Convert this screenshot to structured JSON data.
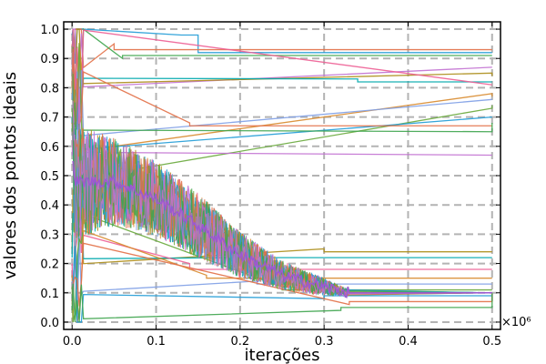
{
  "chart_data": {
    "type": "line",
    "xlabel": "iterações",
    "ylabel": "valores dos pontos ideais",
    "x_exponent_label": "×10⁶",
    "xlim": [
      -0.01,
      0.51
    ],
    "ylim": [
      -0.025,
      1.025
    ],
    "x_ticks": [
      0.0,
      0.1,
      0.2,
      0.3,
      0.4,
      0.5
    ],
    "x_tick_labels": [
      "0.0",
      "0.1",
      "0.2",
      "0.3",
      "0.4",
      "0.5"
    ],
    "y_ticks": [
      0.0,
      0.1,
      0.2,
      0.3,
      0.4,
      0.5,
      0.6,
      0.7,
      0.8,
      0.9,
      1.0
    ],
    "y_tick_labels": [
      "0.0",
      "0.1",
      "0.2",
      "0.3",
      "0.4",
      "0.5",
      "0.6",
      "0.7",
      "0.8",
      "0.9",
      "1.0"
    ],
    "grid": "dashed",
    "legend": "none",
    "palette": [
      "#1f9bd6",
      "#e26f46",
      "#3da44d",
      "#c271d2",
      "#ac8d18",
      "#00a9ad",
      "#ed5e93",
      "#d88a2c",
      "#7e9ee6",
      "#68a83b"
    ],
    "noisy_band": {
      "x": [
        0.0,
        0.05,
        0.1,
        0.15,
        0.2,
        0.25,
        0.3,
        0.33
      ],
      "center": [
        0.48,
        0.48,
        0.42,
        0.33,
        0.23,
        0.16,
        0.12,
        0.1
      ],
      "spread": [
        0.2,
        0.15,
        0.13,
        0.11,
        0.08,
        0.05,
        0.03,
        0.01
      ]
    },
    "converged_value": 0.1,
    "series": [
      {
        "values": [
          [
            0.0,
            0.98
          ],
          [
            0.13,
            0.98
          ],
          [
            0.15,
            0.92
          ],
          [
            0.5,
            0.92
          ]
        ]
      },
      {
        "values": [
          [
            0.0,
            0.95
          ],
          [
            0.05,
            0.93
          ],
          [
            0.5,
            0.93
          ]
        ]
      },
      {
        "values": [
          [
            0.0,
            0.9
          ],
          [
            0.06,
            0.91
          ],
          [
            0.5,
            0.91
          ]
        ]
      },
      {
        "values": [
          [
            0.0,
            0.87
          ],
          [
            0.5,
            0.87
          ]
        ]
      },
      {
        "values": [
          [
            0.0,
            0.85
          ],
          [
            0.5,
            0.84
          ]
        ]
      },
      {
        "values": [
          [
            0.0,
            0.83
          ],
          [
            0.33,
            0.83
          ],
          [
            0.34,
            0.82
          ],
          [
            0.5,
            0.82
          ]
        ]
      },
      {
        "values": [
          [
            0.0,
            0.81
          ],
          [
            0.5,
            0.81
          ]
        ]
      },
      {
        "values": [
          [
            0.0,
            0.78
          ],
          [
            0.5,
            0.77
          ]
        ]
      },
      {
        "values": [
          [
            0.0,
            0.76
          ],
          [
            0.5,
            0.76
          ]
        ]
      },
      {
        "values": [
          [
            0.0,
            0.73
          ],
          [
            0.5,
            0.74
          ]
        ]
      },
      {
        "values": [
          [
            0.0,
            0.7
          ],
          [
            0.5,
            0.7
          ]
        ]
      },
      {
        "values": [
          [
            0.0,
            0.68
          ],
          [
            0.14,
            0.67
          ],
          [
            0.5,
            0.67
          ]
        ]
      },
      {
        "values": [
          [
            0.0,
            0.65
          ],
          [
            0.5,
            0.68
          ]
        ]
      },
      {
        "values": [
          [
            0.0,
            0.57
          ],
          [
            0.5,
            0.57
          ]
        ]
      },
      {
        "values": [
          [
            0.0,
            0.25
          ],
          [
            0.3,
            0.24
          ],
          [
            0.5,
            0.24
          ]
        ]
      },
      {
        "values": [
          [
            0.0,
            0.22
          ],
          [
            0.2,
            0.22
          ],
          [
            0.5,
            0.22
          ]
        ]
      },
      {
        "values": [
          [
            0.0,
            0.2
          ],
          [
            0.14,
            0.18
          ],
          [
            0.5,
            0.18
          ]
        ]
      },
      {
        "values": [
          [
            0.0,
            0.16
          ],
          [
            0.16,
            0.15
          ],
          [
            0.5,
            0.15
          ]
        ]
      },
      {
        "values": [
          [
            0.0,
            0.14
          ],
          [
            0.22,
            0.13
          ],
          [
            0.5,
            0.13
          ]
        ]
      },
      {
        "values": [
          [
            0.0,
            0.12
          ],
          [
            0.25,
            0.11
          ],
          [
            0.5,
            0.11
          ]
        ]
      },
      {
        "values": [
          [
            0.0,
            0.08
          ],
          [
            0.3,
            0.09
          ],
          [
            0.5,
            0.1
          ]
        ]
      },
      {
        "values": [
          [
            0.0,
            0.06
          ],
          [
            0.33,
            0.07
          ],
          [
            0.5,
            0.1
          ]
        ]
      },
      {
        "values": [
          [
            0.0,
            0.04
          ],
          [
            0.32,
            0.05
          ],
          [
            0.5,
            0.1
          ]
        ]
      }
    ]
  }
}
